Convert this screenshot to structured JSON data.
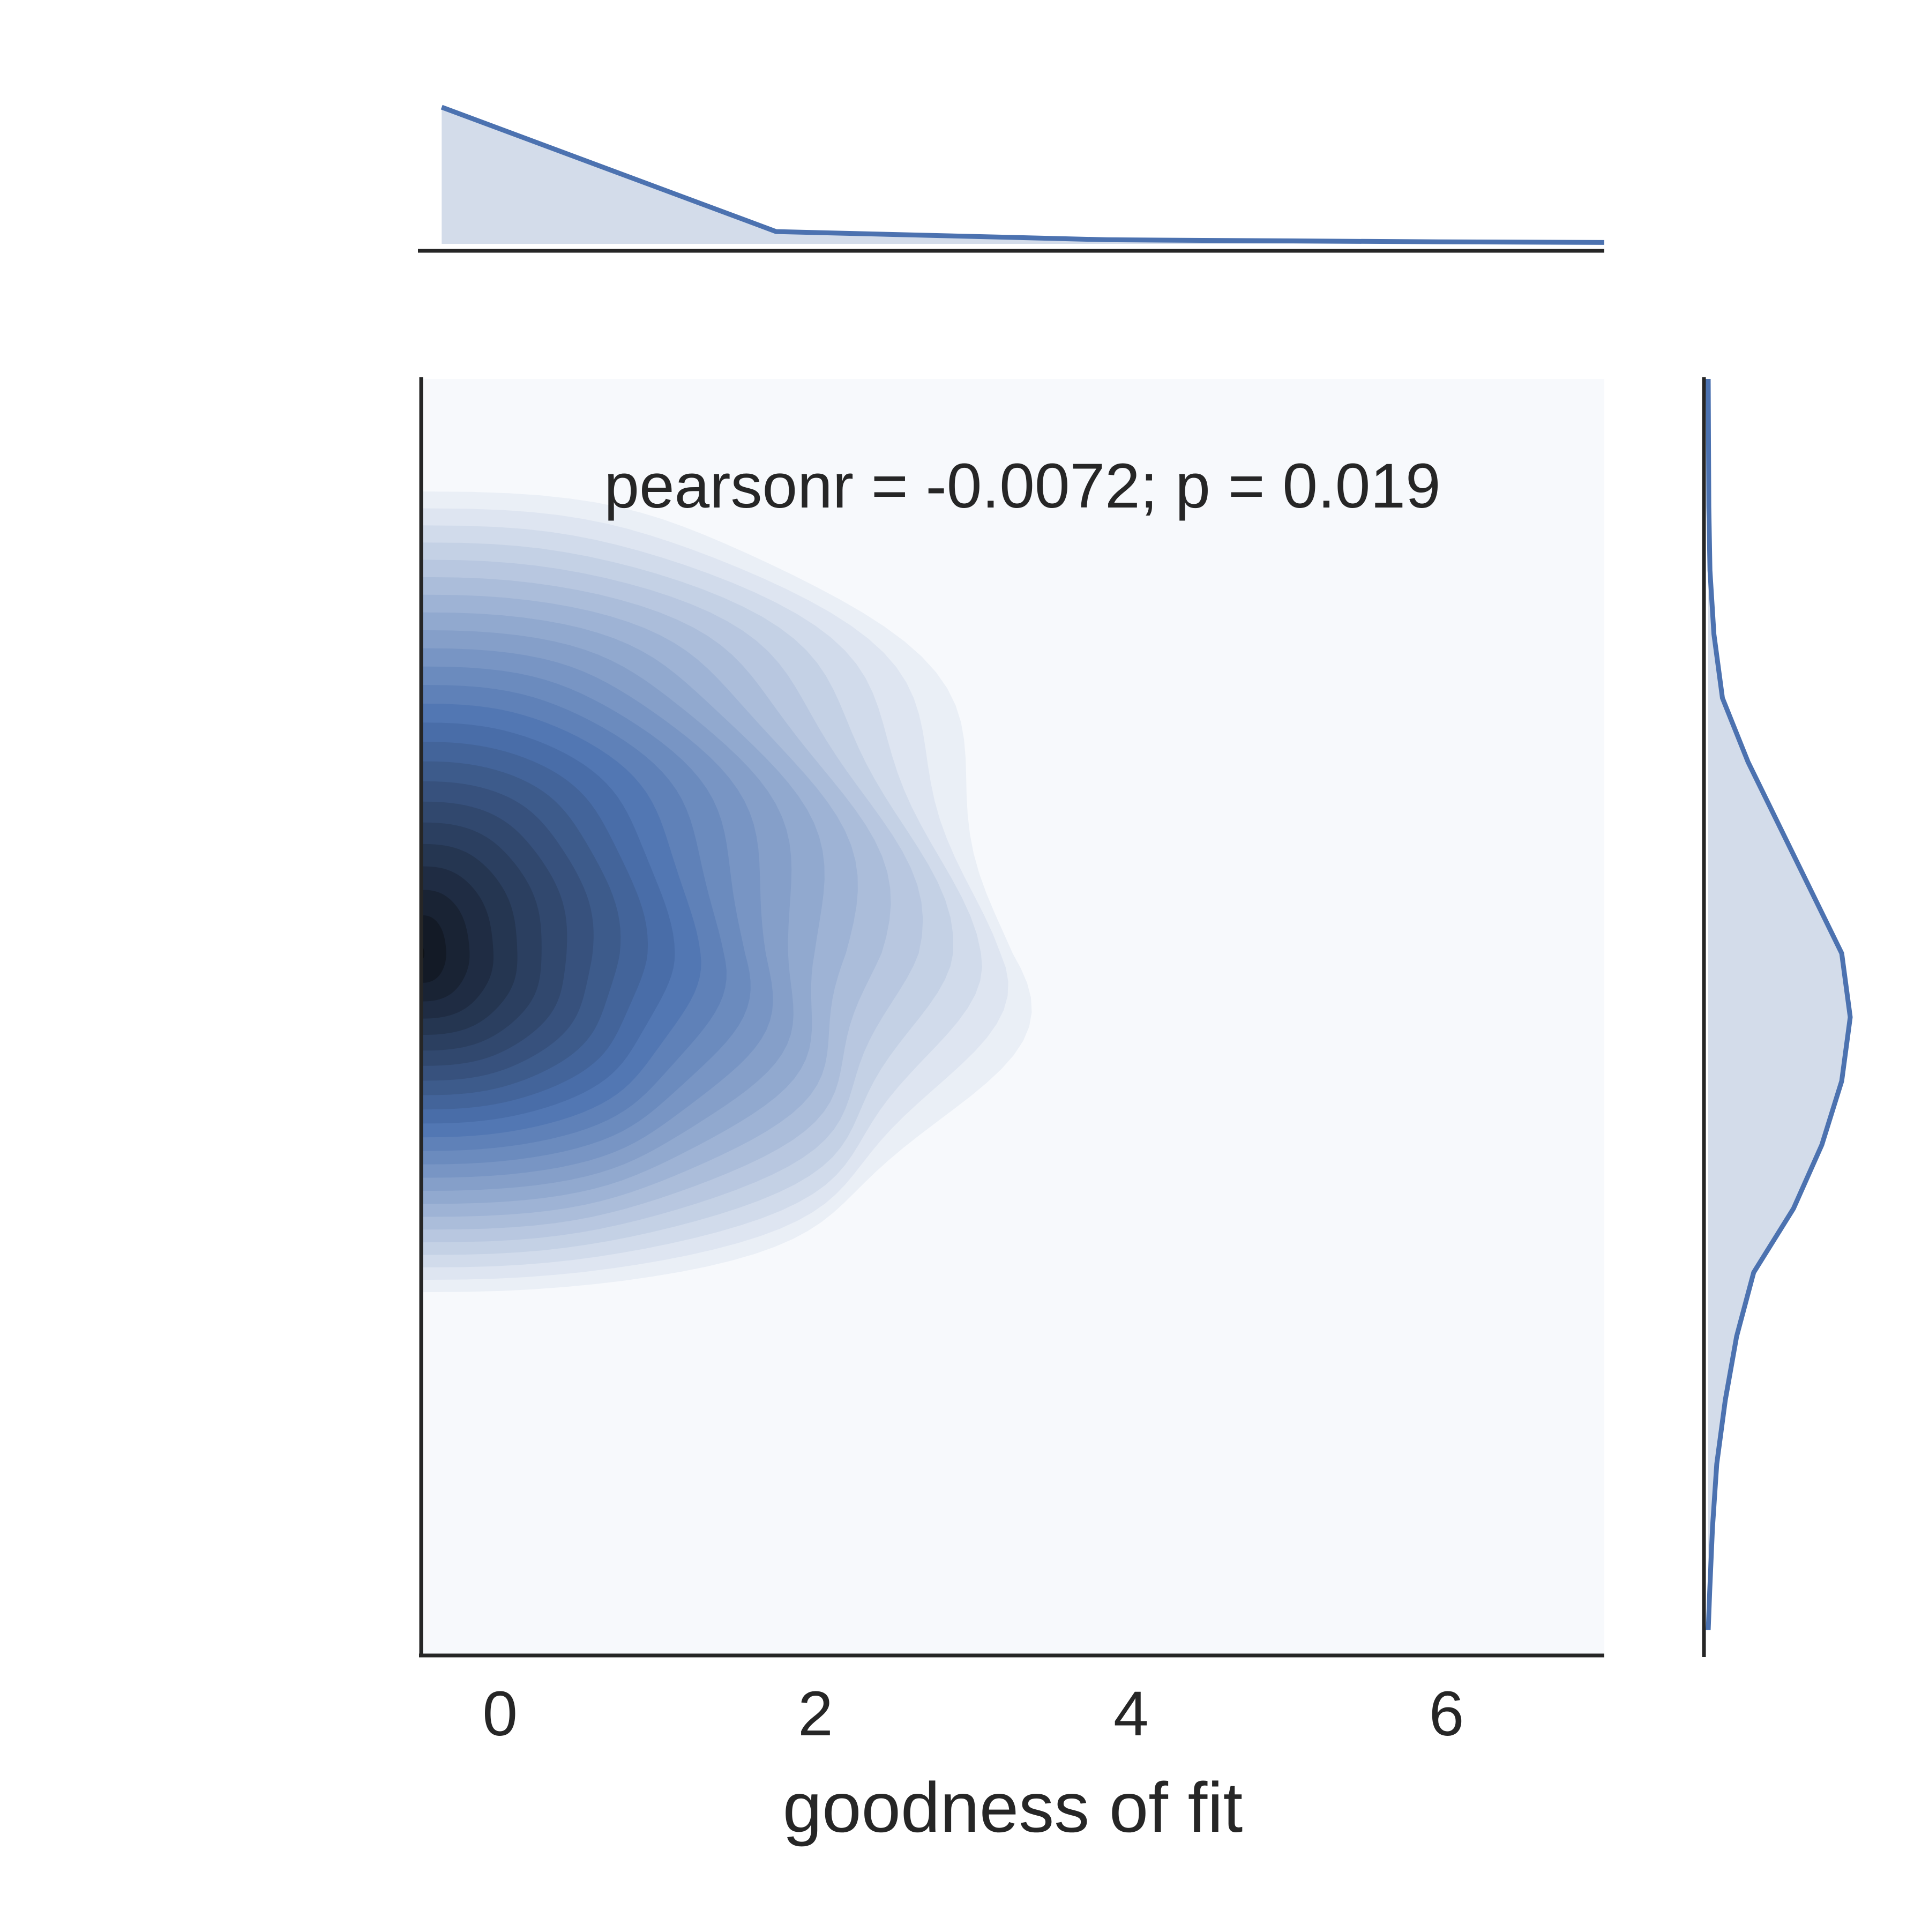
{
  "chart_data": {
    "type": "kde-joint",
    "annotation": "pearsonr = -0.0072; p = 0.019",
    "xlabel": "goodness of fit",
    "ylabel": "",
    "xlim": [
      -0.5,
      7.0
    ],
    "ylim": [
      0,
      1
    ],
    "x_ticks": [
      0,
      2,
      4,
      6
    ],
    "x_tick_labels": [
      "0",
      "2",
      "4",
      "6"
    ],
    "y_ticks": [],
    "grid": false,
    "kde_peak": {
      "x": -0.5,
      "y": 0.55
    },
    "top_marginal": {
      "x": [
        -0.37,
        1.75,
        3.85,
        5.95,
        7.0
      ],
      "density": [
        1.0,
        0.09,
        0.03,
        0.015,
        0.01
      ]
    },
    "right_marginal": {
      "y": [
        1.0,
        0.95,
        0.9,
        0.85,
        0.8,
        0.75,
        0.7,
        0.65,
        0.6,
        0.55,
        0.5,
        0.45,
        0.4,
        0.35,
        0.3,
        0.25,
        0.2,
        0.15,
        0.1,
        0.05,
        0.02
      ],
      "density": [
        0.0,
        0.002,
        0.004,
        0.012,
        0.04,
        0.1,
        0.28,
        0.5,
        0.72,
        0.94,
        1.0,
        0.94,
        0.8,
        0.6,
        0.32,
        0.2,
        0.12,
        0.06,
        0.03,
        0.01,
        0.0
      ]
    },
    "colors": {
      "line": "#4c72b0",
      "fill": "#d3dcea",
      "contour_low": "#f7f9fc",
      "contour_mid": "#4c72b0",
      "contour_high": "#0a0c10",
      "axes": "#262626"
    }
  }
}
